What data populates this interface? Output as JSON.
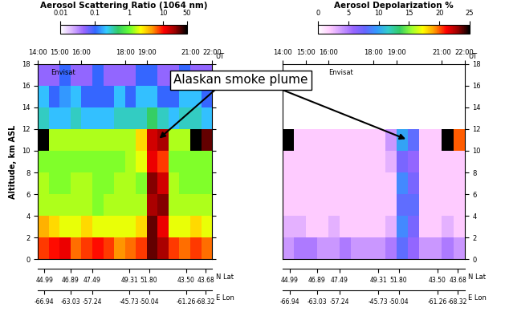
{
  "chart_data": [
    {
      "type": "heatmap",
      "title": "Aerosol Scattering Ratio (1064 nm)",
      "colorbar": {
        "range": [
          0.01,
          50
        ],
        "ticks": [
          0.01,
          0.1,
          1,
          10,
          50
        ],
        "log": true
      },
      "x_edges": [
        14,
        14.5,
        15,
        15.5,
        16,
        16.5,
        17,
        17.5,
        18,
        18.5,
        19,
        19.5,
        20,
        20.5,
        21,
        21.5,
        22
      ],
      "y_edges": [
        0,
        2,
        4,
        6,
        8,
        10,
        12,
        14,
        16,
        18
      ],
      "cells": [
        [
          8,
          10,
          12,
          6,
          8,
          10,
          8,
          5,
          6,
          8,
          30,
          20,
          8,
          6,
          8,
          6
        ],
        [
          4,
          3,
          2,
          2,
          3,
          2,
          2,
          2,
          2,
          3,
          30,
          12,
          2,
          2,
          3,
          2
        ],
        [
          1.5,
          1.5,
          1.5,
          1.5,
          1.5,
          1.2,
          1.5,
          1.5,
          1.5,
          1.5,
          20,
          25,
          1.5,
          1.5,
          1.5,
          1.5
        ],
        [
          1.5,
          1.2,
          1.2,
          1.5,
          1.5,
          1.2,
          1.2,
          1.5,
          1.5,
          1.2,
          25,
          15,
          1.5,
          1.2,
          1.2,
          1.2
        ],
        [
          1.2,
          1.2,
          1.2,
          1.2,
          1.2,
          1.2,
          1.2,
          1.2,
          1.5,
          2,
          12,
          8,
          1.2,
          1.2,
          1.2,
          1.2
        ],
        [
          50,
          1.5,
          1.5,
          1.5,
          1.5,
          1.5,
          1.5,
          1.5,
          1.5,
          3,
          15,
          20,
          1.5,
          1.5,
          50,
          30
        ],
        [
          0.3,
          0.2,
          0.2,
          0.3,
          0.2,
          0.2,
          0.2,
          0.3,
          0.3,
          0.3,
          0.5,
          0.3,
          0.2,
          0.3,
          0.3,
          0.2
        ],
        [
          0.2,
          0.1,
          0.15,
          0.2,
          0.1,
          0.1,
          0.1,
          0.2,
          0.1,
          0.2,
          0.2,
          0.1,
          0.1,
          0.2,
          0.2,
          0.1
        ],
        [
          0.05,
          0.05,
          0.1,
          0.05,
          0.05,
          0.1,
          0.05,
          0.05,
          0.05,
          0.1,
          0.1,
          0.05,
          0.05,
          0.1,
          0.05,
          0.05
        ]
      ],
      "xlim": [
        14,
        22
      ],
      "xticks": [
        {
          "value": 14,
          "label": "14:00"
        },
        {
          "value": 15,
          "label": "15:00"
        },
        {
          "value": 16,
          "label": "16:00"
        },
        {
          "value": 18,
          "label": "18:00"
        },
        {
          "value": 19,
          "label": "19:00"
        },
        {
          "value": 21,
          "label": "21:00"
        },
        {
          "value": 22,
          "label": "22:00"
        }
      ],
      "time_label": "UT",
      "ylim": [
        0,
        18
      ],
      "yticks": [
        0,
        2,
        4,
        6,
        8,
        10,
        12,
        14,
        16,
        18
      ],
      "y_label": "Altitude, km ASL",
      "lat_ticks": [
        {
          "value": 14.3,
          "label": "44.99"
        },
        {
          "value": 15.5,
          "label": "46.89"
        },
        {
          "value": 16.5,
          "label": "47.49"
        },
        {
          "value": 18.2,
          "label": "49.31"
        },
        {
          "value": 19.1,
          "label": "51.80"
        },
        {
          "value": 20.8,
          "label": "43.50"
        },
        {
          "value": 21.7,
          "label": "43.68"
        }
      ],
      "lat_label": "N Lat",
      "lon_ticks": [
        {
          "value": 14.3,
          "label": "-66.94"
        },
        {
          "value": 15.5,
          "label": "-63.03"
        },
        {
          "value": 16.5,
          "label": "-57.24"
        },
        {
          "value": 18.2,
          "label": "-45.73"
        },
        {
          "value": 19.1,
          "label": "-50.04"
        },
        {
          "value": 20.8,
          "label": "-61.26"
        },
        {
          "value": 21.7,
          "label": "-68.32"
        }
      ],
      "lon_label": "E Lon",
      "annotations": [
        {
          "text": "Envisat",
          "x": 14.6,
          "y": 17
        }
      ]
    },
    {
      "type": "heatmap",
      "title": "Aerosol Depolarization %",
      "colorbar": {
        "range": [
          0,
          25
        ],
        "ticks": [
          0,
          5,
          10,
          15,
          20,
          25
        ]
      },
      "x_edges": [
        14,
        14.5,
        15,
        15.5,
        16,
        16.5,
        17,
        17.5,
        18,
        18.5,
        19,
        19.5,
        20,
        20.5,
        21,
        21.5,
        22
      ],
      "y_edges": [
        0,
        2,
        4,
        6,
        8,
        10,
        12,
        14,
        16,
        18
      ],
      "cells": [
        [
          4,
          5,
          5,
          4,
          4,
          5,
          4,
          4,
          4,
          5,
          8,
          6,
          4,
          4,
          5,
          4
        ],
        [
          3,
          3,
          2,
          2,
          3,
          2,
          2,
          2,
          2,
          3,
          9,
          7,
          2,
          2,
          3,
          2
        ],
        [
          2,
          2,
          2,
          2,
          2,
          2,
          2,
          2,
          2,
          2,
          8,
          8,
          2,
          2,
          2,
          2
        ],
        [
          2,
          2,
          2,
          2,
          2,
          2,
          2,
          2,
          2,
          2,
          9,
          7,
          2,
          2,
          2,
          2
        ],
        [
          2,
          2,
          2,
          2,
          2,
          2,
          2,
          2,
          2,
          3,
          7,
          6,
          2,
          2,
          2,
          2
        ],
        [
          25,
          2,
          2,
          2,
          2,
          2,
          2,
          2,
          2,
          4,
          10,
          8,
          2,
          2,
          25,
          20
        ],
        [
          0,
          0,
          0,
          0,
          0,
          0,
          0,
          0,
          0,
          0,
          0,
          0,
          0,
          0,
          0,
          0
        ],
        [
          0,
          0,
          0,
          0,
          0,
          0,
          0,
          0,
          0,
          0,
          0,
          0,
          0,
          0,
          0,
          0
        ],
        [
          0,
          0,
          0,
          0,
          0,
          0,
          0,
          0,
          0,
          0,
          0,
          0,
          0,
          0,
          0,
          0
        ]
      ],
      "xlim": [
        14,
        22
      ],
      "xticks": [
        {
          "value": 14,
          "label": "14:00"
        },
        {
          "value": 15,
          "label": "15:00"
        },
        {
          "value": 16,
          "label": "16:00"
        },
        {
          "value": 18,
          "label": "18:00"
        },
        {
          "value": 19,
          "label": "19:00"
        },
        {
          "value": 21,
          "label": "21:00"
        },
        {
          "value": 22,
          "label": "22:00"
        }
      ],
      "time_label": "UT",
      "ylim": [
        0,
        18
      ],
      "yticks": [
        0,
        2,
        4,
        6,
        8,
        10,
        12,
        14,
        16,
        18
      ],
      "lat_ticks": [
        {
          "value": 14.3,
          "label": "44.99"
        },
        {
          "value": 15.5,
          "label": "46.89"
        },
        {
          "value": 16.5,
          "label": "47.49"
        },
        {
          "value": 18.2,
          "label": "49.31"
        },
        {
          "value": 19.1,
          "label": "51.80"
        },
        {
          "value": 20.8,
          "label": "43.50"
        },
        {
          "value": 21.7,
          "label": "43.68"
        }
      ],
      "lat_label": "N Lat",
      "lon_ticks": [
        {
          "value": 14.3,
          "label": "-66.94"
        },
        {
          "value": 15.5,
          "label": "-63.03"
        },
        {
          "value": 16.5,
          "label": "-57.24"
        },
        {
          "value": 18.2,
          "label": "-45.73"
        },
        {
          "value": 19.1,
          "label": "-50.04"
        },
        {
          "value": 20.8,
          "label": "-61.26"
        },
        {
          "value": 21.7,
          "label": "-68.32"
        }
      ],
      "lon_label": "E Lon",
      "annotations": [
        {
          "text": "Envisat",
          "x": 16.0,
          "y": 17
        }
      ]
    }
  ],
  "annotation": {
    "text": "Alaskan smoke plume",
    "points": [
      [
        19.5,
        11
      ],
      [
        19.5,
        11
      ]
    ]
  }
}
